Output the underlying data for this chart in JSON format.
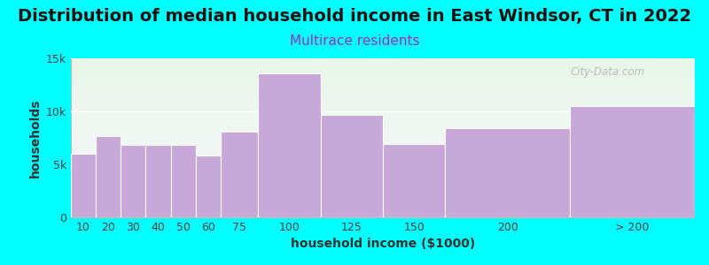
{
  "title": "Distribution of median household income in East Windsor, CT in 2022",
  "subtitle": "Multirace residents",
  "xlabel": "household income ($1000)",
  "ylabel": "households",
  "background_color": "#00FFFF",
  "plot_bg_gradient_top": "#e8f5e8",
  "plot_bg_gradient_bottom": "#f8f8ff",
  "bar_color": "#C8A8D8",
  "bar_edge_color": "#ffffff",
  "categories": [
    "10",
    "20",
    "30",
    "40",
    "50",
    "60",
    "75",
    "100",
    "125",
    "150",
    "200",
    "> 200"
  ],
  "left_edges": [
    0,
    10,
    20,
    30,
    40,
    50,
    60,
    75,
    100,
    125,
    150,
    200
  ],
  "widths": [
    10,
    10,
    10,
    10,
    10,
    10,
    15,
    25,
    25,
    25,
    50,
    50
  ],
  "values": [
    6000,
    7700,
    6800,
    6800,
    6800,
    5800,
    8100,
    13600,
    9700,
    6900,
    8400,
    10500
  ],
  "ylim": [
    0,
    15000
  ],
  "yticks": [
    0,
    5000,
    10000,
    15000
  ],
  "ytick_labels": [
    "0",
    "5k",
    "10k",
    "15k"
  ],
  "title_fontsize": 14,
  "subtitle_fontsize": 11,
  "subtitle_color": "#9B30C0",
  "axis_label_fontsize": 10,
  "tick_fontsize": 9,
  "watermark_text": "City-Data.com"
}
